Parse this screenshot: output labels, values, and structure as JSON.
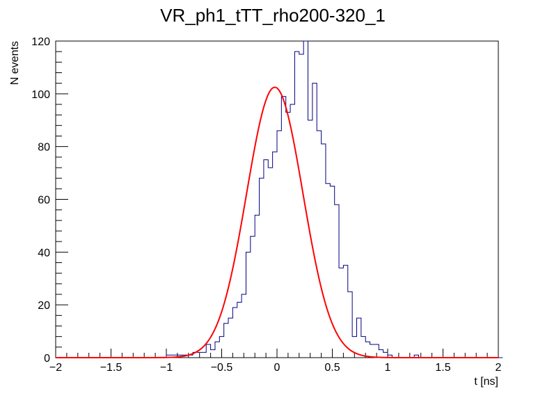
{
  "chart_data": {
    "type": "line",
    "title": "VR_ph1_tTT_rho200-320_1",
    "xlabel": "t [ns]",
    "ylabel": "N events",
    "xlim": [
      -2,
      2
    ],
    "ylim": [
      0,
      120
    ],
    "x_ticks": [
      -2,
      -1.5,
      -1,
      -0.5,
      0,
      0.5,
      1,
      1.5,
      2
    ],
    "x_tick_labels": [
      "−2",
      "−1.5",
      "−1",
      "−0.5",
      "0",
      "0.5",
      "1",
      "1.5",
      "2"
    ],
    "y_ticks": [
      0,
      20,
      40,
      60,
      80,
      100,
      120
    ],
    "y_tick_labels": [
      "0",
      "20",
      "40",
      "60",
      "80",
      "100",
      "120"
    ],
    "grid": false,
    "legend": "none",
    "histogram": {
      "name": "histogram",
      "color": "#000080",
      "bin_width": 0.04,
      "x_start": -2,
      "counts": [
        0,
        0,
        0,
        0,
        0,
        0,
        0,
        0,
        0,
        0,
        0,
        0,
        0,
        0,
        0,
        0,
        0,
        0,
        0,
        0,
        0,
        0,
        0,
        0,
        0,
        1,
        1,
        1,
        1,
        1,
        1,
        2,
        2,
        2,
        5,
        3,
        6,
        8,
        13,
        15,
        19,
        21,
        24,
        40,
        46,
        54,
        68,
        75,
        72,
        78,
        86,
        99,
        93,
        96,
        116,
        115,
        122,
        90,
        104,
        86,
        81,
        66,
        65,
        58,
        34,
        35,
        25,
        8,
        15,
        8,
        6,
        5,
        5,
        3,
        2,
        1,
        0,
        0,
        0,
        0,
        0,
        1,
        0,
        0,
        0,
        0,
        0,
        0,
        0,
        0,
        0,
        0,
        0,
        0,
        0,
        0,
        0,
        0,
        0,
        0,
        0
      ]
    },
    "fit": {
      "name": "gaussian fit",
      "color": "#ff0000",
      "amplitude": 102.5,
      "mean": -0.02,
      "sigma": 0.255
    }
  }
}
